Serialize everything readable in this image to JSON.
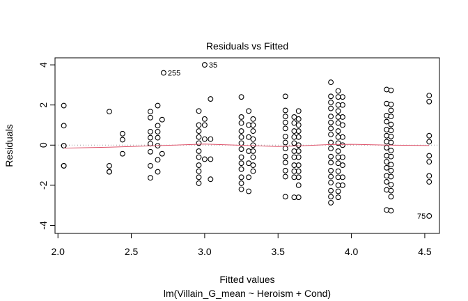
{
  "chart_data": {
    "type": "scatter",
    "title": "Residuals vs Fitted",
    "xlabel": "Fitted values",
    "xlabel_sub": "lm(Villain_G_mean ~ Heroism + Cond)",
    "ylabel": "Residuals",
    "xlim": [
      1.98,
      4.6
    ],
    "ylim": [
      -4.4,
      4.35
    ],
    "x_ticks": [
      2.0,
      2.5,
      3.0,
      3.5,
      4.0,
      4.5
    ],
    "x_tick_labels": [
      "2.0",
      "2.5",
      "3.0",
      "3.5",
      "4.0",
      "4.5"
    ],
    "y_ticks": [
      -4,
      -2,
      0,
      2,
      4
    ],
    "y_tick_labels": [
      "-4",
      "-2",
      "0",
      "2",
      "4"
    ],
    "reference_line_y": 0,
    "groups": [
      {
        "x": 2.04,
        "y": [
          1.97,
          0.97,
          -0.03,
          -0.03,
          -1.03,
          -1.03
        ]
      },
      {
        "x": 2.35,
        "y": [
          1.67,
          -1.03,
          -1.33,
          -1.33
        ]
      },
      {
        "x": 2.44,
        "y": [
          0.57,
          0.27,
          -0.43
        ]
      },
      {
        "x": 2.63,
        "y": [
          1.67,
          1.37,
          0.67,
          0.37,
          0.07,
          -0.33,
          -1.03,
          -1.63
        ]
      },
      {
        "x": 2.68,
        "y": [
          1.97,
          0.97,
          0.67,
          0.37,
          -0.03,
          -0.73,
          -1.33
        ]
      },
      {
        "x": 2.71,
        "y": [
          1.27,
          -0.43
        ]
      },
      {
        "x": 2.72,
        "y": [
          3.6
        ]
      },
      {
        "x": 2.96,
        "y": [
          1.7,
          1.0,
          0.7,
          0.4,
          0.1,
          -0.3,
          -0.6,
          -1.0,
          -1.3,
          -1.6,
          -1.9
        ]
      },
      {
        "x": 3.0,
        "y": [
          4.0
        ]
      },
      {
        "x": 3.0,
        "y": [
          1.3,
          1.0,
          0.3,
          -0.7
        ]
      },
      {
        "x": 3.04,
        "y": [
          2.3,
          0.3,
          -0.7,
          -1.7
        ]
      },
      {
        "x": 3.25,
        "y": [
          2.4,
          1.4,
          1.1,
          0.7,
          0.4,
          0.1,
          -0.2,
          -0.6,
          -0.9,
          -1.2,
          -1.6,
          -1.9,
          -2.2
        ]
      },
      {
        "x": 3.3,
        "y": [
          1.7,
          1.0,
          0.4,
          -0.3,
          -0.9,
          -1.6,
          -2.3
        ]
      },
      {
        "x": 3.33,
        "y": [
          1.3,
          1.0,
          0.7,
          0.3,
          0.0,
          -0.3,
          -0.6,
          -1.0,
          -1.3
        ]
      },
      {
        "x": 3.55,
        "y": [
          2.43,
          1.73,
          1.43,
          1.13,
          0.83,
          0.43,
          0.13,
          -0.17,
          -0.57,
          -0.87,
          -1.27,
          -1.57,
          -2.57
        ]
      },
      {
        "x": 3.61,
        "y": [
          1.4,
          1.1,
          0.7,
          0.4,
          0.1,
          -0.3,
          -0.6,
          -1.0,
          -1.3,
          -1.6,
          -2.6
        ]
      },
      {
        "x": 3.64,
        "y": [
          1.7,
          1.3,
          1.0,
          0.7,
          0.4,
          0.0,
          -0.3,
          -0.6,
          -1.0,
          -1.3,
          -1.6,
          -2.0,
          -2.6
        ]
      },
      {
        "x": 3.86,
        "y": [
          3.13,
          2.43,
          2.13,
          1.83,
          1.43,
          1.13,
          0.83,
          0.53,
          0.13,
          -0.17,
          -0.57,
          -0.87,
          -1.27,
          -1.57,
          -1.87,
          -2.27,
          -2.57,
          -2.87
        ]
      },
      {
        "x": 3.91,
        "y": [
          2.7,
          2.4,
          2.0,
          1.7,
          1.4,
          1.1,
          0.7,
          0.4,
          0.1,
          -0.3,
          -0.6,
          -0.9,
          -1.3,
          -1.6,
          -2.0,
          -2.3,
          -2.6
        ]
      },
      {
        "x": 3.94,
        "y": [
          2.4,
          2.0,
          1.4,
          1.0,
          0.4,
          0.0,
          -0.6,
          -1.0,
          -1.6,
          -2.0
        ]
      },
      {
        "x": 4.24,
        "y": [
          2.77,
          2.07,
          1.47,
          1.17,
          0.77,
          0.47,
          0.17,
          -0.13,
          -0.53,
          -0.83,
          -1.13,
          -1.53,
          -1.83,
          -2.23,
          -3.23
        ]
      },
      {
        "x": 4.27,
        "y": [
          2.73,
          2.03,
          1.73,
          1.43,
          1.03,
          0.73,
          0.43,
          0.13,
          -0.27,
          -0.57,
          -0.97,
          -1.27,
          -1.57,
          -1.97,
          -2.27,
          -2.57,
          -3.27
        ]
      },
      {
        "x": 4.53,
        "y": [
          2.47,
          2.17,
          0.47,
          0.17,
          -0.53,
          -0.83,
          -1.53,
          -1.83,
          -3.53
        ]
      }
    ],
    "outlier_labels": [
      {
        "text": "255",
        "x": 2.72,
        "y": 3.6
      },
      {
        "text": "35",
        "x": 3.0,
        "y": 4.0
      },
      {
        "text": "75",
        "x": 4.53,
        "y": -3.53
      }
    ],
    "smooth_line": {
      "x": [
        2.04,
        2.35,
        2.5,
        2.7,
        3.0,
        3.3,
        3.5,
        3.64,
        3.86,
        4.0,
        4.24,
        4.53
      ],
      "y": [
        -0.15,
        -0.1,
        -0.07,
        -0.02,
        0.05,
        -0.02,
        -0.07,
        -0.04,
        0.03,
        0.04,
        0.0,
        -0.02
      ]
    },
    "colors": {
      "points": "#000000",
      "smooth": "#df536b",
      "reference": "#999999"
    }
  }
}
